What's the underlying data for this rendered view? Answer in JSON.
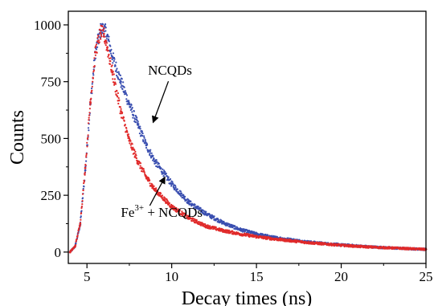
{
  "chart_data": {
    "type": "scatter",
    "xlabel": "Decay times (ns)",
    "ylabel": "Counts",
    "xlim": [
      3.9,
      25
    ],
    "ylim": [
      -50,
      1060
    ],
    "x_ticks": [
      5,
      10,
      15,
      20,
      25
    ],
    "x_tick_labels": [
      "5",
      "10",
      "15",
      "20",
      "25"
    ],
    "y_ticks": [
      0,
      250,
      500,
      750,
      1000
    ],
    "y_tick_labels": [
      "0",
      "250",
      "500",
      "750",
      "1000"
    ],
    "grid": false,
    "legend": "none",
    "series": [
      {
        "color": "#3a4fb0",
        "x": [
          4.0,
          4.3,
          4.6,
          4.9,
          5.2,
          5.5,
          5.8,
          6.0,
          6.2,
          6.5,
          7.0,
          7.5,
          8.0,
          8.5,
          9.0,
          10.0,
          11.0,
          12.0,
          13.0,
          14.0,
          15.0,
          16.0,
          17.0,
          18.0,
          19.0,
          20.0,
          21.0,
          22.0,
          23.0,
          24.0,
          25.0
        ],
        "y": [
          0,
          25,
          120,
          360,
          650,
          880,
          975,
          985,
          950,
          860,
          750,
          650,
          560,
          470,
          400,
          300,
          220,
          170,
          130,
          100,
          80,
          65,
          55,
          45,
          38,
          32,
          27,
          22,
          18,
          15,
          12
        ]
      },
      {
        "color": "#e02a2a",
        "x": [
          4.0,
          4.3,
          4.6,
          4.9,
          5.2,
          5.5,
          5.8,
          6.0,
          6.2,
          6.5,
          7.0,
          7.5,
          8.0,
          8.5,
          9.0,
          10.0,
          11.0,
          12.0,
          13.0,
          14.0,
          15.0,
          16.0,
          17.0,
          18.0,
          19.0,
          20.0,
          21.0,
          22.0,
          23.0,
          24.0,
          25.0
        ],
        "y": [
          0,
          25,
          125,
          370,
          660,
          880,
          965,
          960,
          900,
          790,
          620,
          490,
          400,
          330,
          275,
          200,
          150,
          115,
          95,
          80,
          68,
          58,
          50,
          42,
          36,
          30,
          25,
          21,
          18,
          15,
          12
        ]
      }
    ],
    "annotations": [
      {
        "text": "NCQDs",
        "x": 9.9,
        "y": 780,
        "arrow_to": [
          8.9,
          570
        ]
      },
      {
        "base": "Fe",
        "sup": "3+",
        "rest": " + NCQDs",
        "x": 7.0,
        "y": 155,
        "arrow_to": [
          9.6,
          330
        ]
      }
    ]
  }
}
